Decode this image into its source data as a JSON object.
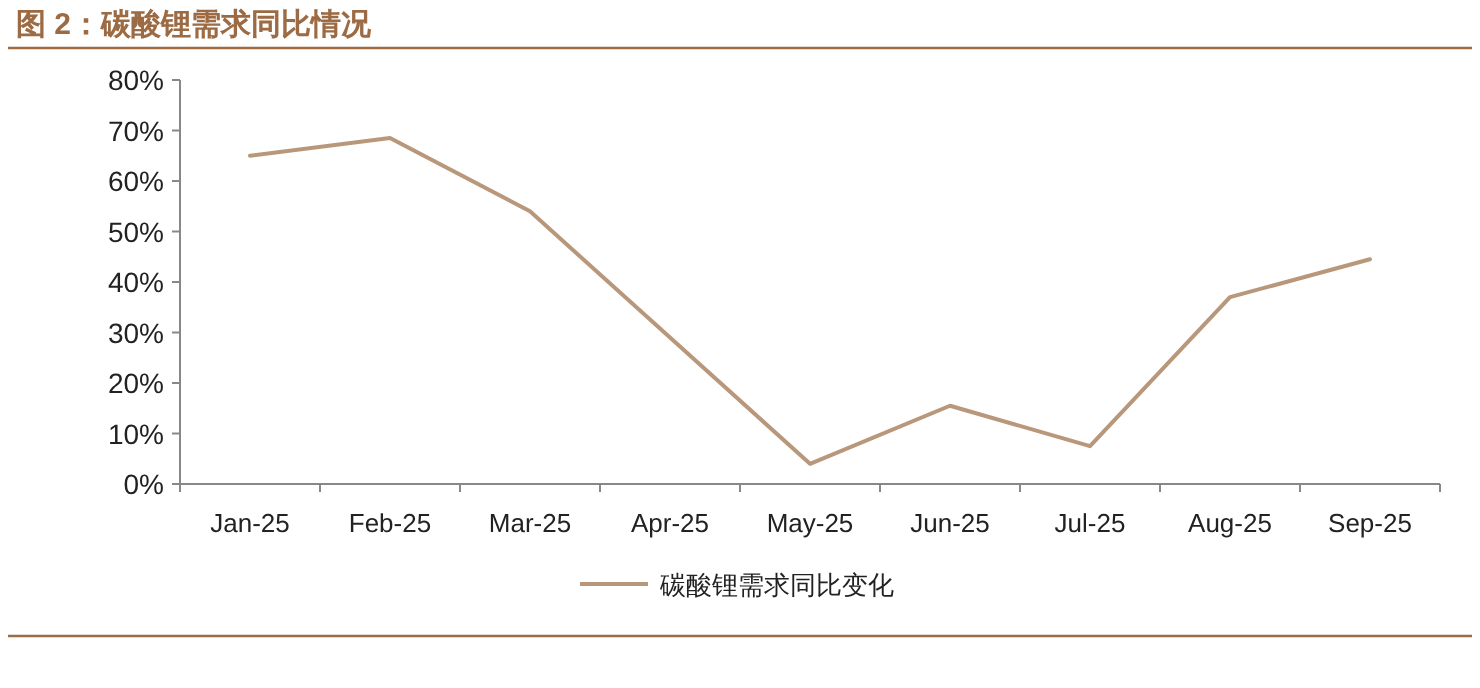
{
  "chart_data": {
    "type": "line",
    "title": "图 2：碳酸锂需求同比情况",
    "categories": [
      "Jan-25",
      "Feb-25",
      "Mar-25",
      "Apr-25",
      "May-25",
      "Jun-25",
      "Jul-25",
      "Aug-25",
      "Sep-25"
    ],
    "series": [
      {
        "name": "碳酸锂需求同比变化",
        "color": "#b8977a",
        "values": [
          65,
          68.5,
          54,
          29,
          4,
          15.5,
          7.5,
          37,
          44.5
        ]
      }
    ],
    "ylim": [
      0,
      80
    ],
    "yticks": [
      {
        "value": 0,
        "label": "0%"
      },
      {
        "value": 10,
        "label": "10%"
      },
      {
        "value": 20,
        "label": "20%"
      },
      {
        "value": 30,
        "label": "30%"
      },
      {
        "value": 40,
        "label": "40%"
      },
      {
        "value": 50,
        "label": "50%"
      },
      {
        "value": 60,
        "label": "60%"
      },
      {
        "value": 70,
        "label": "70%"
      },
      {
        "value": 80,
        "label": "80%"
      }
    ],
    "grid": false,
    "legend": "bottom"
  }
}
